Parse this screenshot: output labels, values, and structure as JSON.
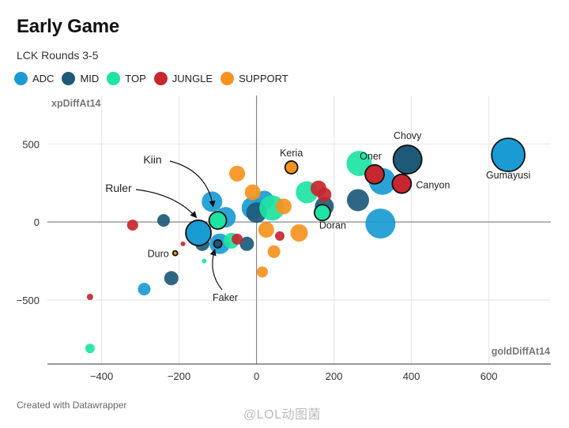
{
  "title": "Early Game",
  "subtitle": "LCK Rounds 3-5",
  "footer": "Created with Datawrapper",
  "watermark": "@LOL动图菌",
  "legend": [
    {
      "label": "ADC",
      "color": "#1a9bd3"
    },
    {
      "label": "MID",
      "color": "#1c5a78"
    },
    {
      "label": "TOP",
      "color": "#1ee3a2"
    },
    {
      "label": "JUNGLE",
      "color": "#c7272f"
    },
    {
      "label": "SUPPORT",
      "color": "#f5921e"
    }
  ],
  "chart_data": {
    "type": "scatter",
    "title": "Early Game",
    "subtitle": "LCK Rounds 3-5",
    "xlabel": "goldDiffAt14",
    "ylabel": "xpDiffAt14",
    "xlim": [
      -540,
      760
    ],
    "ylim": [
      -910,
      810
    ],
    "x_ticks": [
      -400,
      -200,
      0,
      200,
      400,
      600
    ],
    "y_ticks": [
      -500,
      0,
      500
    ],
    "x_tick_labels": [
      "−400",
      "−200",
      "0",
      "200",
      "400",
      "600"
    ],
    "y_tick_labels": [
      "−500",
      "0",
      "500"
    ],
    "grid": true,
    "legend_position": "top-left",
    "series": [
      {
        "name": "ADC",
        "color": "#1a9bd3",
        "points": [
          {
            "x": 650,
            "y": 430,
            "r": 21,
            "label": "Gumayusi",
            "highlight": true
          },
          {
            "x": 325,
            "y": 260,
            "r": 17
          },
          {
            "x": 320,
            "y": -10,
            "r": 19
          },
          {
            "x": -115,
            "y": 130,
            "r": 13
          },
          {
            "x": -80,
            "y": 30,
            "r": 13
          },
          {
            "x": -95,
            "y": -140,
            "r": 13
          },
          {
            "x": -10,
            "y": 90,
            "r": 14
          },
          {
            "x": 20,
            "y": 140,
            "r": 12
          },
          {
            "x": -290,
            "y": -430,
            "r": 8
          },
          {
            "x": -150,
            "y": -70,
            "r": 16,
            "label": "Ruler",
            "highlight": true
          }
        ]
      },
      {
        "name": "MID",
        "color": "#1c5a78",
        "points": [
          {
            "x": 390,
            "y": 400,
            "r": 18,
            "label": "Chovy",
            "highlight": true
          },
          {
            "x": 262,
            "y": 140,
            "r": 14
          },
          {
            "x": 175,
            "y": 100,
            "r": 12
          },
          {
            "x": -240,
            "y": 10,
            "r": 8
          },
          {
            "x": -220,
            "y": -360,
            "r": 9
          },
          {
            "x": 0,
            "y": 60,
            "r": 13
          },
          {
            "x": -25,
            "y": -140,
            "r": 9
          },
          {
            "x": -140,
            "y": -140,
            "r": 9
          },
          {
            "x": -100,
            "y": -140,
            "r": 5,
            "label": "Faker",
            "highlight": true
          }
        ]
      },
      {
        "name": "TOP",
        "color": "#1ee3a2",
        "points": [
          {
            "x": 265,
            "y": 375,
            "r": 16,
            "label": "Oner"
          },
          {
            "x": 130,
            "y": 190,
            "r": 14
          },
          {
            "x": 40,
            "y": 90,
            "r": 16
          },
          {
            "x": -65,
            "y": -120,
            "r": 10
          },
          {
            "x": -100,
            "y": 10,
            "r": 11,
            "label": "Kiin",
            "highlight": true
          },
          {
            "x": 170,
            "y": 60,
            "r": 10,
            "label": "Doran",
            "highlight": true
          },
          {
            "x": -135,
            "y": -250,
            "r": 3
          },
          {
            "x": -430,
            "y": -810,
            "r": 6
          }
        ]
      },
      {
        "name": "JUNGLE",
        "color": "#c7272f",
        "points": [
          {
            "x": 305,
            "y": 305,
            "r": 12,
            "label": "Oner",
            "highlight": true
          },
          {
            "x": 375,
            "y": 245,
            "r": 12,
            "label": "Canyon",
            "highlight": true
          },
          {
            "x": 160,
            "y": 215,
            "r": 10
          },
          {
            "x": 175,
            "y": 175,
            "r": 9
          },
          {
            "x": -320,
            "y": -20,
            "r": 7
          },
          {
            "x": -50,
            "y": -110,
            "r": 7
          },
          {
            "x": 60,
            "y": -90,
            "r": 6
          },
          {
            "x": -190,
            "y": -140,
            "r": 3
          },
          {
            "x": -430,
            "y": -480,
            "r": 4
          }
        ]
      },
      {
        "name": "SUPPORT",
        "color": "#f5921e",
        "points": [
          {
            "x": 90,
            "y": 350,
            "r": 8,
            "label": "Keria",
            "highlight": true
          },
          {
            "x": -50,
            "y": 310,
            "r": 10
          },
          {
            "x": -10,
            "y": 190,
            "r": 10
          },
          {
            "x": 70,
            "y": 100,
            "r": 10
          },
          {
            "x": 25,
            "y": -50,
            "r": 10
          },
          {
            "x": 110,
            "y": -70,
            "r": 11
          },
          {
            "x": 45,
            "y": -190,
            "r": 8
          },
          {
            "x": 15,
            "y": -320,
            "r": 7
          },
          {
            "x": -210,
            "y": -200,
            "r": 3,
            "label": "Duro",
            "highlight": true
          }
        ]
      }
    ],
    "annotations": [
      "Kiin",
      "Ruler",
      "Keria",
      "Doran",
      "Chovy",
      "Oner",
      "Canyon",
      "Gumayusi",
      "Duro",
      "Faker"
    ]
  }
}
